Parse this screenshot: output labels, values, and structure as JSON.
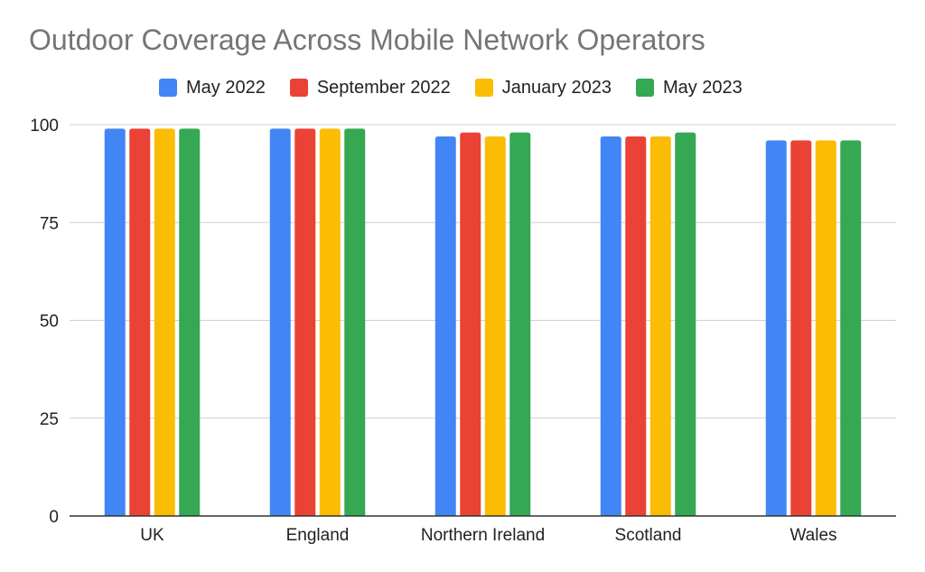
{
  "chart_data": {
    "type": "bar",
    "title": "Outdoor Coverage Across Mobile Network Operators",
    "xlabel": "",
    "ylabel": "",
    "categories": [
      "UK",
      "England",
      "Northern Ireland",
      "Scotland",
      "Wales"
    ],
    "series": [
      {
        "name": "May 2022",
        "color": "#4285F4",
        "values": [
          99,
          99,
          97,
          97,
          96
        ]
      },
      {
        "name": "September 2022",
        "color": "#EA4335",
        "values": [
          99,
          99,
          98,
          97,
          96
        ]
      },
      {
        "name": "January 2023",
        "color": "#FBBC04",
        "values": [
          99,
          99,
          97,
          97,
          96
        ]
      },
      {
        "name": "May 2023",
        "color": "#34A853",
        "values": [
          99,
          99,
          98,
          98,
          96
        ]
      }
    ],
    "ylim": [
      0,
      100
    ],
    "yticks": [
      0,
      25,
      50,
      75,
      100
    ],
    "grid": true,
    "legend_position": "top"
  }
}
